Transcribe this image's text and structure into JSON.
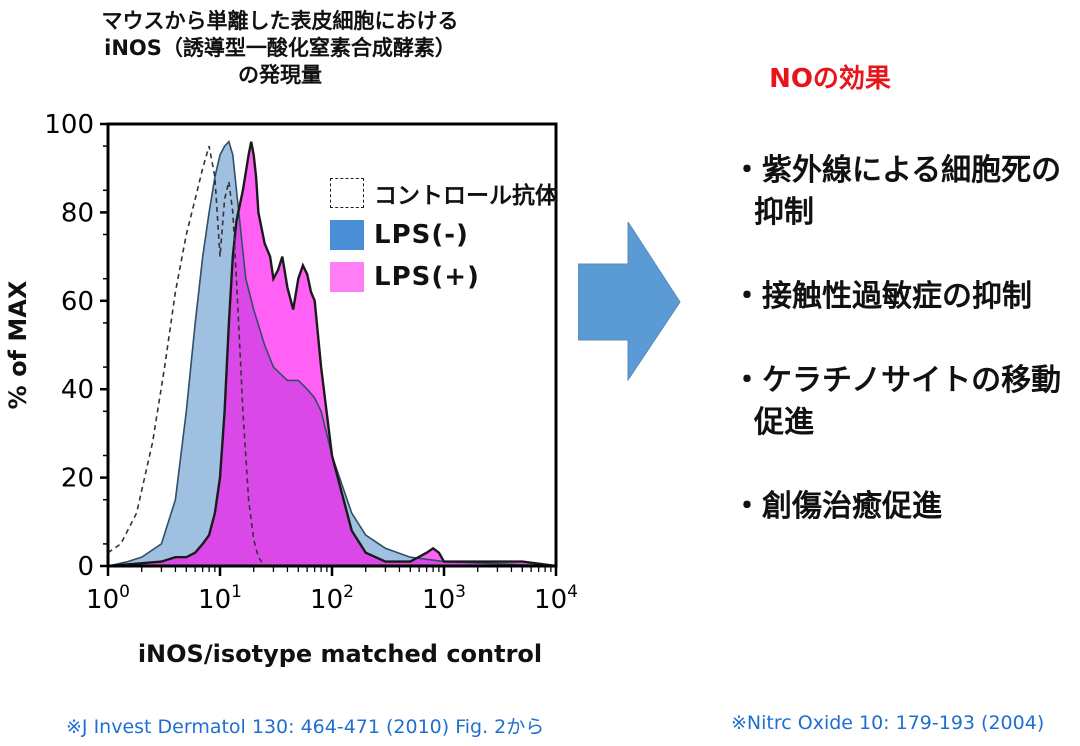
{
  "figure_title": [
    "マウスから単離した表皮細胞における",
    "iNOS（誘導型一酸化窒素合成酵素）",
    "の発現量"
  ],
  "chart_data": {
    "type": "area",
    "title": "マウスから単離した表皮細胞における iNOS（誘導型一酸化窒素合成酵素） の発現量",
    "xlabel": "iNOS/isotype matched control",
    "ylabel": "% of MAX",
    "xscale": "log",
    "xlim": [
      1,
      10000
    ],
    "ylim": [
      0,
      100
    ],
    "yticks": [
      0,
      20,
      40,
      60,
      80,
      100
    ],
    "xticks": [
      {
        "value": 1,
        "base": "10",
        "exp": "0"
      },
      {
        "value": 10,
        "base": "10",
        "exp": "1"
      },
      {
        "value": 100,
        "base": "10",
        "exp": "2"
      },
      {
        "value": 1000,
        "base": "10",
        "exp": "3"
      },
      {
        "value": 10000,
        "base": "10",
        "exp": "4"
      }
    ],
    "legend_position": "top-right",
    "series": [
      {
        "name": "コントロール抗体",
        "style": "dashed",
        "color": "#333333",
        "x": [
          1,
          1.3,
          1.8,
          2.5,
          3.2,
          4,
          5,
          6,
          7,
          8,
          9,
          10,
          11,
          12,
          13,
          14,
          15,
          16,
          18,
          20,
          22,
          25,
          30,
          40,
          1000,
          10000
        ],
        "y": [
          3,
          5,
          12,
          28,
          45,
          62,
          75,
          83,
          90,
          95,
          88,
          70,
          83,
          87,
          80,
          65,
          50,
          35,
          15,
          6,
          2,
          0,
          0,
          0,
          0,
          0
        ]
      },
      {
        "name": "LPS(-)",
        "style": "fill",
        "color": "#9fc0e0",
        "x": [
          1,
          1.5,
          2,
          3,
          4,
          5,
          6,
          7,
          8,
          9,
          10,
          11,
          12,
          13,
          15,
          17,
          20,
          25,
          30,
          40,
          50,
          60,
          70,
          80,
          100,
          150,
          200,
          300,
          500,
          1000,
          10000
        ],
        "y": [
          0,
          1,
          2,
          5,
          15,
          35,
          55,
          70,
          80,
          88,
          93,
          95,
          96,
          93,
          78,
          65,
          58,
          50,
          45,
          42,
          42,
          40,
          38,
          35,
          25,
          12,
          7,
          4,
          2,
          1,
          0
        ]
      },
      {
        "name": "LPS(+)",
        "style": "fill",
        "color": "#ff00ee",
        "x": [
          1,
          3,
          4,
          5,
          6,
          7,
          8,
          9,
          10,
          11,
          12,
          13,
          14,
          16,
          18,
          19,
          20,
          21,
          22,
          25,
          28,
          30,
          33,
          36,
          40,
          45,
          50,
          55,
          60,
          65,
          70,
          80,
          100,
          150,
          200,
          300,
          500,
          700,
          800,
          900,
          1000,
          2000,
          5000,
          10000
        ],
        "y": [
          0,
          1,
          2,
          2,
          3,
          5,
          7,
          12,
          20,
          35,
          55,
          70,
          78,
          85,
          93,
          96,
          93,
          88,
          80,
          73,
          70,
          65,
          67,
          70,
          63,
          58,
          65,
          68,
          66,
          62,
          60,
          45,
          25,
          8,
          3,
          1,
          1,
          3,
          4,
          3,
          1,
          1,
          1,
          0
        ]
      }
    ]
  },
  "legend": {
    "control_label": "コントロール抗体",
    "lps_neg_label": "LPS(-)",
    "lps_pos_label": "LPS(+)"
  },
  "effects": {
    "title": "NOの効果",
    "items": [
      {
        "lines": [
          "・紫外線による細胞死の",
          "抑制"
        ]
      },
      {
        "lines": [
          "・接触性過敏症の抑制"
        ]
      },
      {
        "lines": [
          "・ケラチノサイトの移動",
          "促進"
        ]
      },
      {
        "lines": [
          "・創傷治癒促進"
        ]
      }
    ]
  },
  "references": {
    "left": "※J Invest Dermatol 130: 464-471 (2010) Fig. 2から",
    "right": "※Nitrc Oxide 10: 179-193 (2004)"
  },
  "colors": {
    "arrow": "#5b9bd5",
    "effects_title": "#e8141a",
    "reference": "#1f6fd1"
  }
}
